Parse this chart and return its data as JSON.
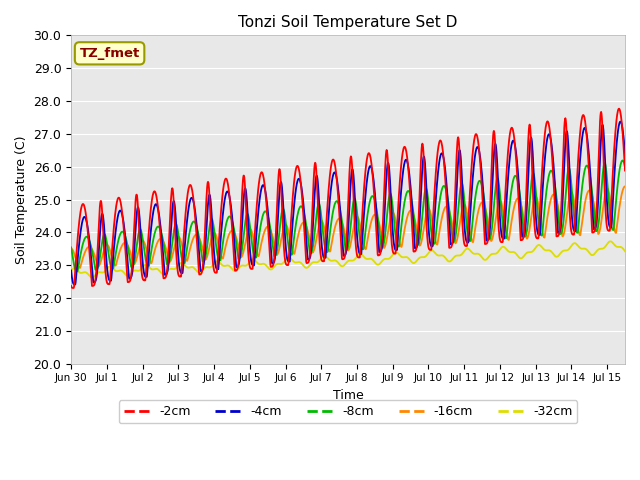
{
  "title": "Tonzi Soil Temperature Set D",
  "xlabel": "Time",
  "ylabel": "Soil Temperature (C)",
  "ylim": [
    20.0,
    30.0
  ],
  "yticks": [
    20.0,
    21.0,
    22.0,
    23.0,
    24.0,
    25.0,
    26.0,
    27.0,
    28.0,
    29.0,
    30.0
  ],
  "xtick_labels": [
    "Jun 30",
    "Jul 1",
    "Jul 2",
    "Jul 3",
    "Jul 4",
    "Jul 5",
    "Jul 6",
    "Jul 7",
    "Jul 8",
    "Jul 9",
    "Jul 10",
    "Jul 11",
    "Jul 12",
    "Jul 13",
    "Jul 14",
    "Jul 15"
  ],
  "series_colors": {
    "-2cm": "#ff0000",
    "-4cm": "#0000cc",
    "-8cm": "#00bb00",
    "-16cm": "#ff8800",
    "-32cm": "#dddd00"
  },
  "legend_label": "TZ_fmet",
  "legend_box_color": "#ffffcc",
  "legend_box_edge": "#999900",
  "legend_text_color": "#880000",
  "background_color": "#e8e8e8",
  "plot_bg_color": "#e8e8e8",
  "grid_color": "#ffffff",
  "n_days": 15.5,
  "points_per_day": 96
}
